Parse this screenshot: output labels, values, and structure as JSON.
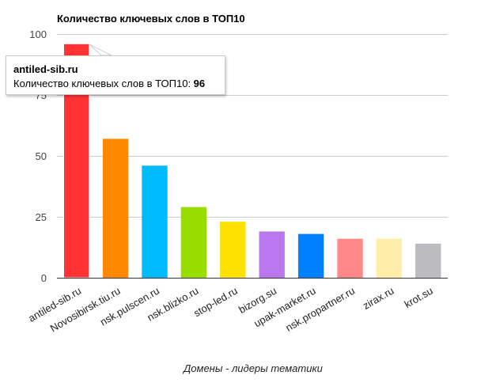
{
  "chart_data": {
    "type": "bar",
    "title": "Количество ключевых слов в ТОП10",
    "xlabel": "Домены - лидеры тематики",
    "ylabel": "",
    "ylim": [
      0,
      100
    ],
    "yticks": [
      "0",
      "25",
      "50",
      "75",
      "100"
    ],
    "grid": true,
    "categories": [
      "antiled-sib.ru",
      "Novosibirsk.tiu.ru",
      "nsk.pulscen.ru",
      "nsk.blizko.ru",
      "stop-led.ru",
      "bizorg.su",
      "upak-market.ru",
      "nsk.propartner.ru",
      "zirax.ru",
      "krot.su"
    ],
    "values": [
      96,
      57,
      46,
      29,
      23,
      19,
      18,
      16,
      16,
      14
    ],
    "colors": [
      "#ff3333",
      "#ff8800",
      "#00bbff",
      "#99dd00",
      "#ffe100",
      "#bb77ee",
      "#0080ff",
      "#ff8888",
      "#ffeeaa",
      "#bbbbc0"
    ]
  },
  "tooltip": {
    "title": "antiled-sib.ru",
    "series_label": "Количество ключевых слов в ТОП10: ",
    "value": "96"
  }
}
